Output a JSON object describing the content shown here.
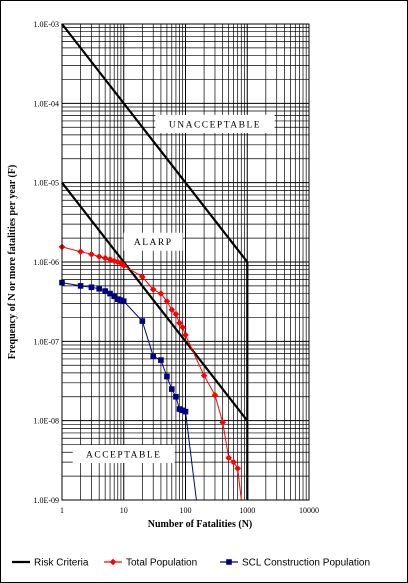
{
  "chart_data": {
    "type": "line",
    "x_scale": "log",
    "y_scale": "log",
    "xlim": [
      1,
      10000
    ],
    "ylim": [
      1e-09,
      0.001
    ],
    "xlabel": "Number of Fatalities (N)",
    "ylabel": "Frequency of N or more fatalities per year (F)",
    "x_ticks": [
      {
        "value": 1,
        "label": "1"
      },
      {
        "value": 10,
        "label": "10"
      },
      {
        "value": 100,
        "label": "100"
      },
      {
        "value": 1000,
        "label": "1000"
      },
      {
        "value": 10000,
        "label": "10000"
      }
    ],
    "y_ticks": [
      {
        "value": 1e-09,
        "label": "1.0E-09"
      },
      {
        "value": 1e-08,
        "label": "1.0E-08"
      },
      {
        "value": 1e-07,
        "label": "1.0E-07"
      },
      {
        "value": 1e-06,
        "label": "1.0E-06"
      },
      {
        "value": 1e-05,
        "label": "1.0E-05"
      },
      {
        "value": 0.0001,
        "label": "1.0E-04"
      },
      {
        "value": 0.001,
        "label": "1.0E-03"
      }
    ],
    "grid": true,
    "regions": [
      {
        "label": "UNACCEPTABLE",
        "x": 300,
        "y": 5.5e-05
      },
      {
        "label": "ALARP",
        "x": 30,
        "y": 1.8e-06
      },
      {
        "label": "ACCEPTABLE",
        "x": 10,
        "y": 3.8e-09
      }
    ],
    "series": [
      {
        "name": "Risk Criteria",
        "color": "#000000",
        "marker": "none",
        "segments": [
          [
            [
              1,
              0.001
            ],
            [
              1000,
              1e-06
            ],
            [
              1000,
              1e-08
            ]
          ],
          [
            [
              1,
              1e-05
            ],
            [
              1000,
              1e-08
            ],
            [
              1000,
              1e-09
            ]
          ]
        ]
      },
      {
        "name": "Total Population",
        "color": "#ff0000",
        "marker": "diamond",
        "x": [
          1,
          2,
          3,
          4,
          5,
          6,
          7,
          8,
          9,
          10,
          20,
          30,
          40,
          50,
          60,
          70,
          80,
          90,
          100,
          200,
          300,
          400,
          500,
          600,
          700,
          800
        ],
        "y": [
          1.55e-06,
          1.35e-06,
          1.25e-06,
          1.17e-06,
          1.12e-06,
          1.08e-06,
          1.03e-06,
          1e-06,
          9.7e-07,
          9e-07,
          6.5e-07,
          4.5e-07,
          4e-07,
          3.2e-07,
          2.5e-07,
          2.2e-07,
          1.7e-07,
          1.5e-07,
          1.2e-07,
          3.7e-08,
          2.1e-08,
          9.5e-09,
          3.4e-09,
          3e-09,
          2.5e-09,
          1e-09
        ]
      },
      {
        "name": "SCL Construction Population",
        "color": "#000080",
        "marker": "square",
        "x": [
          1,
          2,
          3,
          4,
          5,
          6,
          7,
          8,
          9,
          10,
          20,
          30,
          40,
          50,
          60,
          70,
          80,
          90,
          100,
          150
        ],
        "y": [
          5.5e-07,
          5e-07,
          4.8e-07,
          4.6e-07,
          4.3e-07,
          4e-07,
          3.7e-07,
          3.4e-07,
          3.3e-07,
          3.2e-07,
          1.8e-07,
          6.5e-08,
          5.8e-08,
          3.6e-08,
          2.5e-08,
          2e-08,
          1.4e-08,
          1.35e-08,
          1.3e-08,
          1e-09
        ]
      }
    ],
    "legend_position": "bottom"
  }
}
